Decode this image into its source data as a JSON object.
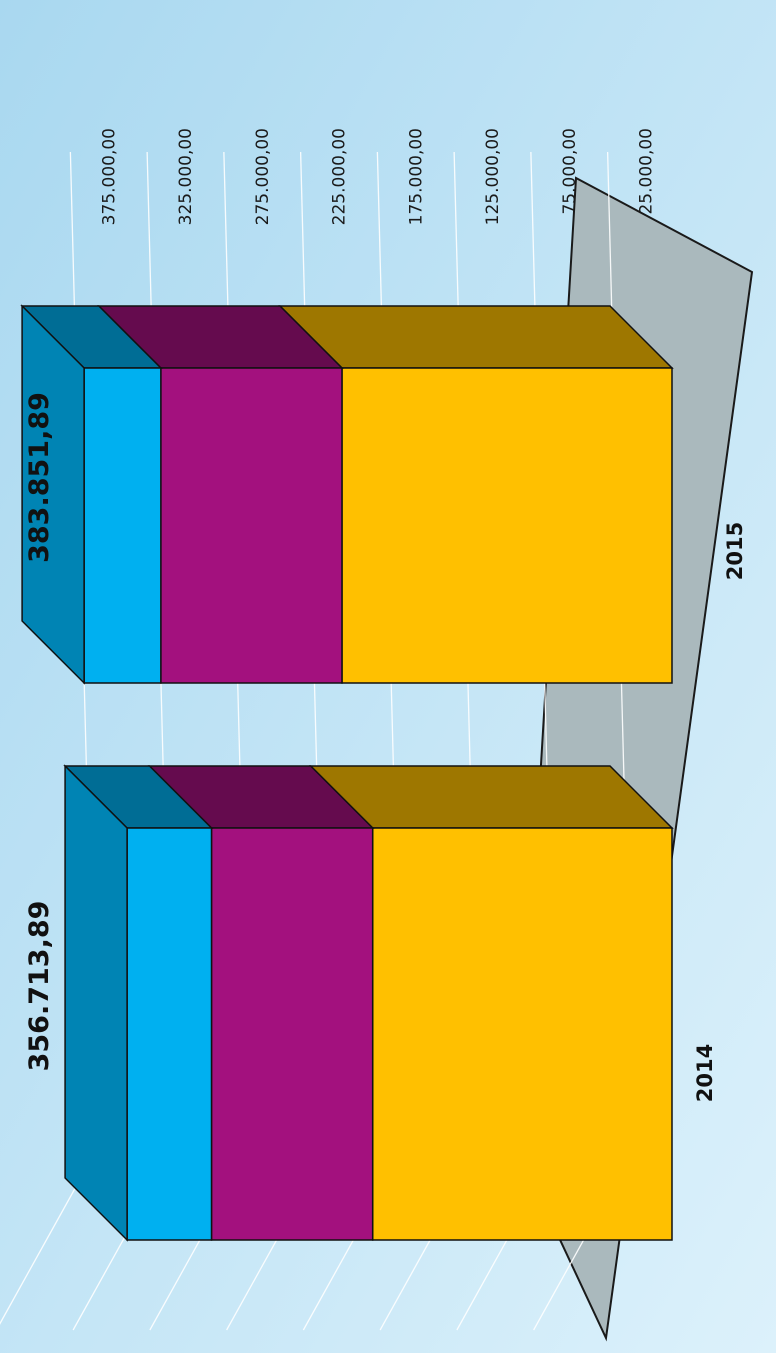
{
  "chart_data": {
    "type": "bar",
    "stacked": true,
    "three_d": true,
    "rotated": "90deg-clockwise",
    "categories": [
      "2014",
      "2015"
    ],
    "totals_labels": [
      "356.713,89",
      "383.851,89"
    ],
    "series": [
      {
        "values": [
          195000,
          215000
        ],
        "color": "#FFC000"
      },
      {
        "values": [
          105000,
          118000
        ],
        "color": "#A3117E"
      },
      {
        "values": [
          55000,
          50000
        ],
        "color": "#00B0F0"
      }
    ],
    "y_ticks": [
      "375.000,00",
      "325.000,00",
      "275.000,00",
      "225.000,00",
      "175.000,00",
      "125.000,00",
      "75.000,00",
      "25.000,00"
    ],
    "ylim": [
      0,
      400000
    ],
    "grid": true,
    "legend": "none",
    "colors": {
      "background_start": "#A9D8F0",
      "background_end": "#DCF1FB",
      "floor": "#AAB9BD",
      "gridline": "#FFFFFF"
    }
  }
}
